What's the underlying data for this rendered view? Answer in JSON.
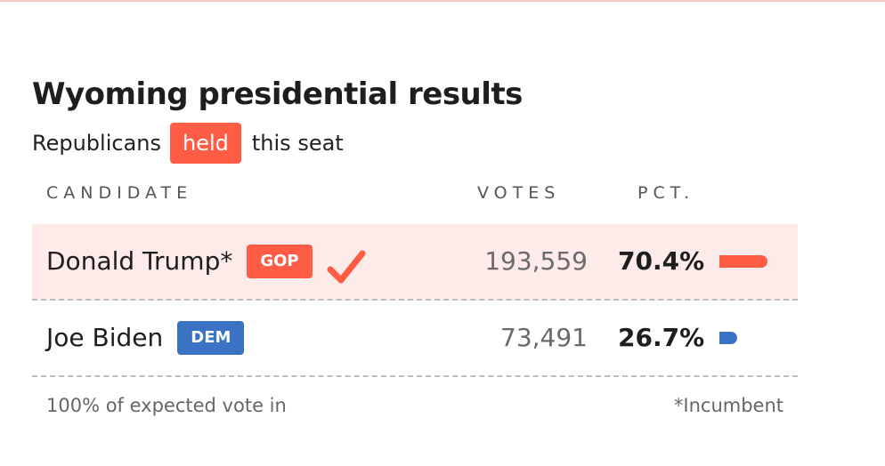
{
  "header": {
    "title": "Wyoming presidential results",
    "subtitle_before": "Republicans",
    "subtitle_badge": "held",
    "subtitle_after": "this seat",
    "badge_color": "#ff5c45"
  },
  "table": {
    "columns": {
      "candidate": "CANDIDATE",
      "votes": "VOTES",
      "pct": "PCT."
    },
    "rows": [
      {
        "name": "Donald Trump*",
        "party": "GOP",
        "party_color": "#ff5c45",
        "winner": true,
        "check_icon": "checkmark-icon",
        "votes": "193,559",
        "pct": "70.4%",
        "pct_value": 70.4,
        "bar_color": "#ff5c45"
      },
      {
        "name": "Joe Biden",
        "party": "DEM",
        "party_color": "#3a72c4",
        "winner": false,
        "votes": "73,491",
        "pct": "26.7%",
        "pct_value": 26.7,
        "bar_color": "#3a72c4"
      }
    ]
  },
  "footer": {
    "reporting": "100% of expected vote in",
    "incumbent_note": "*Incumbent"
  }
}
